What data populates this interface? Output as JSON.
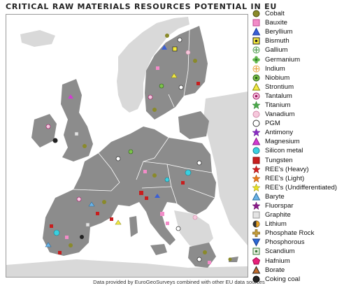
{
  "title": "CRITICAL RAW MATERIALS RESOURCES POTENTIAL IN EU",
  "footer": "Data provided by EuroGeoSurveys combined with other EU data sources",
  "colors": {
    "eu_land": "#8c8c8c",
    "non_eu_land": "#d9d9d9",
    "sea": "#ffffff",
    "border": "#ffffff"
  },
  "legend": [
    {
      "label": "Cobalt",
      "shape": "circle",
      "fill": "#8a8a2a",
      "stroke": "#4d4d10"
    },
    {
      "label": "Bauxite",
      "shape": "square",
      "fill": "#f28cc8",
      "stroke": "#c04a92"
    },
    {
      "label": "Beryllium",
      "shape": "triangle",
      "fill": "#3a5fd6",
      "stroke": "#1b3a9c"
    },
    {
      "label": "Bismuth",
      "shape": "square-dot",
      "fill": "#f4ea3a",
      "stroke": "#222222"
    },
    {
      "label": "Gallium",
      "shape": "plus-circle",
      "fill": "#ffffff",
      "stroke": "#4a9a4a"
    },
    {
      "label": "Germanium",
      "shape": "flower",
      "fill": "#63b84d",
      "stroke": "#2d7a2d"
    },
    {
      "label": "Indium",
      "shape": "plus-circle",
      "fill": "#ffffff",
      "stroke": "#e6a23c"
    },
    {
      "label": "Niobium",
      "shape": "circle-dot",
      "fill": "#7cc24a",
      "stroke": "#2b5e1a"
    },
    {
      "label": "Strontium",
      "shape": "triangle",
      "fill": "#f3ea45",
      "stroke": "#8a8a10"
    },
    {
      "label": "Tantalum",
      "shape": "circle-dot",
      "fill": "#f4c7df",
      "stroke": "#a01060"
    },
    {
      "label": "Titanium",
      "shape": "star",
      "fill": "#4aa84a",
      "stroke": "#2a7a2a"
    },
    {
      "label": "Vanadium",
      "shape": "circle",
      "fill": "#f6c8dc",
      "stroke": "#d08aa8"
    },
    {
      "label": "PGM",
      "shape": "circle",
      "fill": "#ffffff",
      "stroke": "#333333"
    },
    {
      "label": "Antimony",
      "shape": "star",
      "fill": "#8a2bc4",
      "stroke": "#5a1a8a"
    },
    {
      "label": "Magnesium",
      "shape": "triangle",
      "fill": "#d23ad2",
      "stroke": "#8a1a8a"
    },
    {
      "label": "Silicon metal",
      "shape": "circle",
      "fill": "#3ad0e0",
      "stroke": "#1a7a8a"
    },
    {
      "label": "Tungsten",
      "shape": "square",
      "fill": "#c81e1e",
      "stroke": "#8a0a0a"
    },
    {
      "label": "REE's (Heavy)",
      "shape": "star",
      "fill": "#d42020",
      "stroke": "#8a0a0a"
    },
    {
      "label": "REE's (Light)",
      "shape": "star",
      "fill": "#e87a1a",
      "stroke": "#a04a0a"
    },
    {
      "label": "REE's (Undifferentiated)",
      "shape": "star",
      "fill": "#e8e020",
      "stroke": "#8a8a10"
    },
    {
      "label": "Baryte",
      "shape": "triangle",
      "fill": "#6ab4e8",
      "stroke": "#2a6a9a"
    },
    {
      "label": "Fluorspar",
      "shape": "star",
      "fill": "#8a1a8a",
      "stroke": "#5a0a5a"
    },
    {
      "label": "Graphite",
      "shape": "square",
      "fill": "#e4e4e4",
      "stroke": "#9a9a9a"
    },
    {
      "label": "Lithium",
      "shape": "half-circle",
      "fill": "#e8a020",
      "stroke": "#333333"
    },
    {
      "label": "Phosphate Rock",
      "shape": "plus",
      "fill": "#c8a040",
      "stroke": "#7a5a10"
    },
    {
      "label": "Phosphorous",
      "shape": "triangle-down",
      "fill": "#2a6ad6",
      "stroke": "#1a3a8a"
    },
    {
      "label": "Scandium",
      "shape": "square-dot",
      "fill": "#e8f0e0",
      "stroke": "#3a7a3a"
    },
    {
      "label": "Hafnium",
      "shape": "pentagon",
      "fill": "#e8207a",
      "stroke": "#9a0a4a"
    },
    {
      "label": "Borate",
      "shape": "triangle",
      "fill": "#c06a2a",
      "stroke": "#222222"
    },
    {
      "label": "Coking coal",
      "shape": "circle",
      "fill": "#222222",
      "stroke": "#000000"
    }
  ]
}
